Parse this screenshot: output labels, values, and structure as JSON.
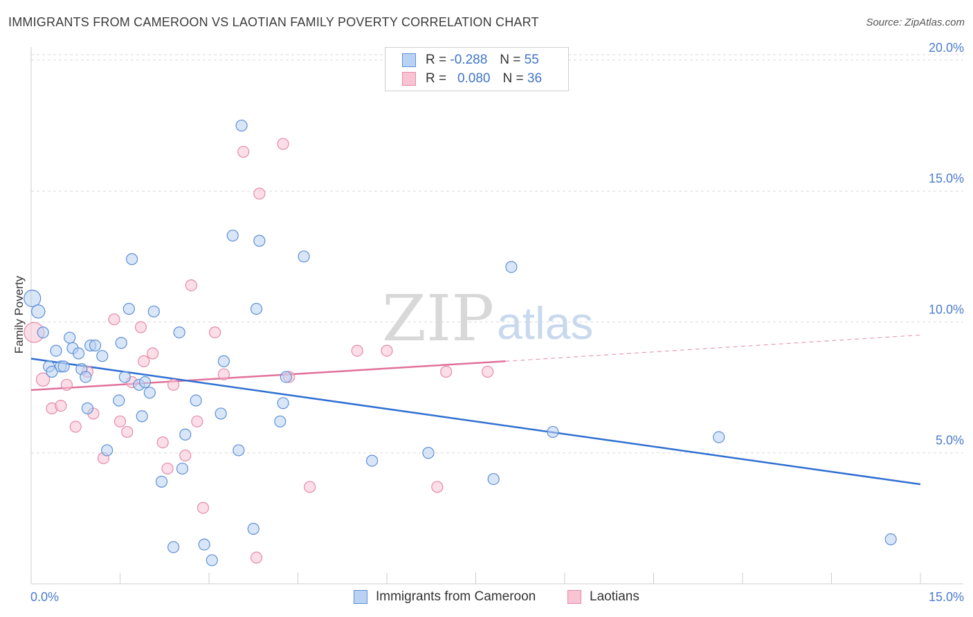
{
  "header": {
    "title": "IMMIGRANTS FROM CAMEROON VS LAOTIAN FAMILY POVERTY CORRELATION CHART",
    "source": "Source: ZipAtlas.com"
  },
  "watermark": {
    "part1": "ZIP",
    "part2": "atlas"
  },
  "legend_top": {
    "rows": [
      {
        "r_label": "R =",
        "r_value": "-0.288",
        "n_label": "N =",
        "n_value": "55"
      },
      {
        "r_label": "R =",
        "r_value": "0.080",
        "n_label": "N =",
        "n_value": "36"
      }
    ]
  },
  "legend_bottom": {
    "items": [
      {
        "label": "Immigrants from Cameroon"
      },
      {
        "label": "Laotians"
      }
    ]
  },
  "colors": {
    "blue_fill": "#b9d2f3",
    "blue_stroke": "#5c8fd6",
    "blue_line": "#2e6fd1",
    "pink_fill": "#f8c3d3",
    "pink_stroke": "#e58aa6",
    "pink_line": "#e0709a",
    "tick_text": "#4a7bd0"
  },
  "chart_data": {
    "type": "scatter",
    "title": "IMMIGRANTS FROM CAMEROON VS LAOTIAN FAMILY POVERTY CORRELATION CHART",
    "xlabel": "",
    "ylabel": "Family Poverty",
    "xlim": [
      0,
      15
    ],
    "ylim": [
      0,
      20.5
    ],
    "x_tick_labels": [
      "0.0%",
      "15.0%"
    ],
    "y_ticks": [
      5,
      10,
      15,
      20
    ],
    "y_tick_labels": [
      "5.0%",
      "10.0%",
      "15.0%",
      "20.0%"
    ],
    "grid": "horizontal dashed",
    "legend": "top-center",
    "series": [
      {
        "name": "Immigrants from Cameroon",
        "color": "blue",
        "r": -0.288,
        "n": 55,
        "trend": {
          "x": [
            0,
            15
          ],
          "y": [
            8.6,
            3.8
          ]
        },
        "points": [
          {
            "x": 0.02,
            "y": 10.9,
            "s": 1.5
          },
          {
            "x": 0.12,
            "y": 10.4,
            "s": 1.2
          },
          {
            "x": 0.2,
            "y": 9.6,
            "s": 1
          },
          {
            "x": 0.3,
            "y": 8.3,
            "s": 1
          },
          {
            "x": 0.35,
            "y": 8.1,
            "s": 1
          },
          {
            "x": 0.42,
            "y": 8.9,
            "s": 1
          },
          {
            "x": 0.5,
            "y": 8.3,
            "s": 1
          },
          {
            "x": 0.55,
            "y": 8.3,
            "s": 1
          },
          {
            "x": 0.65,
            "y": 9.4,
            "s": 1
          },
          {
            "x": 0.7,
            "y": 9.0,
            "s": 1
          },
          {
            "x": 0.8,
            "y": 8.8,
            "s": 1
          },
          {
            "x": 0.85,
            "y": 8.2,
            "s": 1
          },
          {
            "x": 0.92,
            "y": 7.9,
            "s": 1
          },
          {
            "x": 0.95,
            "y": 6.7,
            "s": 1
          },
          {
            "x": 1.0,
            "y": 9.1,
            "s": 1
          },
          {
            "x": 1.08,
            "y": 9.1,
            "s": 1
          },
          {
            "x": 1.2,
            "y": 8.7,
            "s": 1
          },
          {
            "x": 1.28,
            "y": 5.1,
            "s": 1
          },
          {
            "x": 1.48,
            "y": 7.0,
            "s": 1
          },
          {
            "x": 1.52,
            "y": 9.2,
            "s": 1
          },
          {
            "x": 1.58,
            "y": 7.9,
            "s": 1
          },
          {
            "x": 1.65,
            "y": 10.5,
            "s": 1
          },
          {
            "x": 1.7,
            "y": 12.4,
            "s": 1
          },
          {
            "x": 1.82,
            "y": 7.6,
            "s": 1
          },
          {
            "x": 1.87,
            "y": 6.4,
            "s": 1
          },
          {
            "x": 1.92,
            "y": 7.7,
            "s": 1
          },
          {
            "x": 2.0,
            "y": 7.3,
            "s": 1
          },
          {
            "x": 2.07,
            "y": 10.4,
            "s": 1
          },
          {
            "x": 2.2,
            "y": 3.9,
            "s": 1
          },
          {
            "x": 2.4,
            "y": 1.4,
            "s": 1
          },
          {
            "x": 2.5,
            "y": 9.6,
            "s": 1
          },
          {
            "x": 2.55,
            "y": 4.4,
            "s": 1
          },
          {
            "x": 2.6,
            "y": 5.7,
            "s": 1
          },
          {
            "x": 2.78,
            "y": 7.0,
            "s": 1
          },
          {
            "x": 2.92,
            "y": 1.5,
            "s": 1
          },
          {
            "x": 3.05,
            "y": 0.9,
            "s": 1
          },
          {
            "x": 3.2,
            "y": 6.5,
            "s": 1
          },
          {
            "x": 3.25,
            "y": 8.5,
            "s": 1
          },
          {
            "x": 3.4,
            "y": 13.3,
            "s": 1
          },
          {
            "x": 3.5,
            "y": 5.1,
            "s": 1
          },
          {
            "x": 3.55,
            "y": 17.5,
            "s": 1
          },
          {
            "x": 3.75,
            "y": 2.1,
            "s": 1
          },
          {
            "x": 3.8,
            "y": 10.5,
            "s": 1
          },
          {
            "x": 3.85,
            "y": 13.1,
            "s": 1
          },
          {
            "x": 4.2,
            "y": 6.2,
            "s": 1
          },
          {
            "x": 4.25,
            "y": 6.9,
            "s": 1
          },
          {
            "x": 4.3,
            "y": 7.9,
            "s": 1
          },
          {
            "x": 4.6,
            "y": 12.5,
            "s": 1
          },
          {
            "x": 5.75,
            "y": 4.7,
            "s": 1
          },
          {
            "x": 6.7,
            "y": 5.0,
            "s": 1
          },
          {
            "x": 7.8,
            "y": 4.0,
            "s": 1
          },
          {
            "x": 8.1,
            "y": 12.1,
            "s": 1
          },
          {
            "x": 8.8,
            "y": 5.8,
            "s": 1
          },
          {
            "x": 11.6,
            "y": 5.6,
            "s": 1
          },
          {
            "x": 14.5,
            "y": 1.7,
            "s": 1
          }
        ]
      },
      {
        "name": "Laotians",
        "color": "pink",
        "r": 0.08,
        "n": 36,
        "trend": {
          "x": [
            0,
            8.0
          ],
          "y": [
            7.4,
            8.5
          ]
        },
        "trend_dashed": {
          "x": [
            8.0,
            15
          ],
          "y": [
            8.5,
            9.5
          ]
        },
        "points": [
          {
            "x": 0.05,
            "y": 9.6,
            "s": 1.8
          },
          {
            "x": 0.2,
            "y": 7.8,
            "s": 1.2
          },
          {
            "x": 0.35,
            "y": 6.7,
            "s": 1
          },
          {
            "x": 0.5,
            "y": 6.8,
            "s": 1
          },
          {
            "x": 0.6,
            "y": 7.6,
            "s": 1
          },
          {
            "x": 0.75,
            "y": 6.0,
            "s": 1
          },
          {
            "x": 0.95,
            "y": 8.1,
            "s": 1
          },
          {
            "x": 1.05,
            "y": 6.5,
            "s": 1
          },
          {
            "x": 1.22,
            "y": 4.8,
            "s": 1
          },
          {
            "x": 1.4,
            "y": 10.1,
            "s": 1
          },
          {
            "x": 1.5,
            "y": 6.2,
            "s": 1
          },
          {
            "x": 1.62,
            "y": 5.8,
            "s": 1
          },
          {
            "x": 1.7,
            "y": 7.7,
            "s": 1
          },
          {
            "x": 1.85,
            "y": 9.8,
            "s": 1
          },
          {
            "x": 1.9,
            "y": 8.5,
            "s": 1
          },
          {
            "x": 2.05,
            "y": 8.8,
            "s": 1
          },
          {
            "x": 2.22,
            "y": 5.4,
            "s": 1
          },
          {
            "x": 2.3,
            "y": 4.4,
            "s": 1
          },
          {
            "x": 2.4,
            "y": 7.6,
            "s": 1
          },
          {
            "x": 2.6,
            "y": 4.9,
            "s": 1
          },
          {
            "x": 2.7,
            "y": 11.4,
            "s": 1
          },
          {
            "x": 2.8,
            "y": 6.2,
            "s": 1
          },
          {
            "x": 2.9,
            "y": 2.9,
            "s": 1
          },
          {
            "x": 3.1,
            "y": 9.6,
            "s": 1
          },
          {
            "x": 3.25,
            "y": 8.0,
            "s": 1
          },
          {
            "x": 3.58,
            "y": 16.5,
            "s": 1
          },
          {
            "x": 3.8,
            "y": 1.0,
            "s": 1
          },
          {
            "x": 3.85,
            "y": 14.9,
            "s": 1
          },
          {
            "x": 4.25,
            "y": 16.8,
            "s": 1
          },
          {
            "x": 4.35,
            "y": 7.9,
            "s": 1
          },
          {
            "x": 4.7,
            "y": 3.7,
            "s": 1
          },
          {
            "x": 5.5,
            "y": 8.9,
            "s": 1
          },
          {
            "x": 6.0,
            "y": 8.9,
            "s": 1
          },
          {
            "x": 6.85,
            "y": 3.7,
            "s": 1
          },
          {
            "x": 7.0,
            "y": 8.1,
            "s": 1
          },
          {
            "x": 7.7,
            "y": 8.1,
            "s": 1
          }
        ]
      }
    ]
  }
}
